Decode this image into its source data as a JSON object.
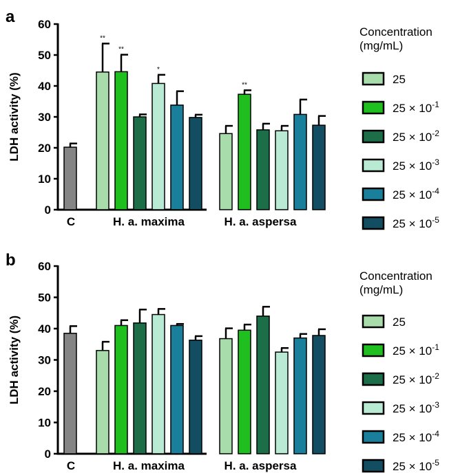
{
  "chart_data": [
    {
      "type": "bar",
      "panel_label": "a",
      "ylabel": "LDH activity (%)",
      "ylim": [
        0,
        60
      ],
      "yticks": [
        "0",
        "10",
        "20",
        "30",
        "40",
        "50",
        "60"
      ],
      "group_labels": [
        "C",
        "H. a. maxima",
        "H. a. aspersa"
      ],
      "legend_title": [
        "Concentration",
        "(mg/mL)"
      ],
      "legend": [
        {
          "base": "25",
          "exp": ""
        },
        {
          "base": "25 × 10",
          "exp": "-1"
        },
        {
          "base": "25 × 10",
          "exp": "-2"
        },
        {
          "base": "25 × 10",
          "exp": "-3"
        },
        {
          "base": "25 × 10",
          "exp": "-4"
        },
        {
          "base": "25 × 10",
          "exp": "-5"
        }
      ],
      "series": [
        {
          "name": "C",
          "values": [
            20.2
          ],
          "errors": [
            1.2
          ],
          "color": "#858585",
          "stars": [
            ""
          ]
        },
        {
          "name": "H. a. maxima",
          "values": [
            44.5,
            44.6,
            30.0,
            40.8,
            33.8,
            29.8
          ],
          "errors": [
            9.2,
            5.5,
            0.8,
            2.8,
            4.5,
            0.9
          ],
          "stars": [
            "**",
            "**",
            "",
            "*",
            "",
            ""
          ]
        },
        {
          "name": "H. a. aspersa",
          "values": [
            24.6,
            37.3,
            25.8,
            25.5,
            30.8,
            27.3
          ],
          "errors": [
            2.5,
            1.3,
            2.0,
            1.6,
            4.8,
            3.0
          ],
          "stars": [
            "",
            "**",
            "",
            "",
            "",
            ""
          ]
        }
      ]
    },
    {
      "type": "bar",
      "panel_label": "b",
      "ylabel": "LDH activity (%)",
      "ylim": [
        0,
        60
      ],
      "yticks": [
        "0",
        "10",
        "20",
        "30",
        "40",
        "50",
        "60"
      ],
      "group_labels": [
        "C",
        "H. a. maxima",
        "H. a. aspersa"
      ],
      "legend_title": [
        "Concentration",
        "(mg/mL)"
      ],
      "legend": [
        {
          "base": "25",
          "exp": ""
        },
        {
          "base": "25 × 10",
          "exp": "-1"
        },
        {
          "base": "25 × 10",
          "exp": "-2"
        },
        {
          "base": "25 × 10",
          "exp": "-3"
        },
        {
          "base": "25 × 10",
          "exp": "-4"
        },
        {
          "base": "25 × 10",
          "exp": "-5"
        }
      ],
      "series": [
        {
          "name": "C",
          "values": [
            38.5
          ],
          "errors": [
            2.3
          ],
          "color": "#858585",
          "stars": [
            ""
          ]
        },
        {
          "name": "H. a. maxima",
          "values": [
            33.0,
            41.0,
            41.8,
            44.5,
            41.0,
            36.3
          ],
          "errors": [
            2.8,
            1.7,
            4.3,
            1.8,
            0.5,
            1.3
          ],
          "stars": [
            "",
            "",
            "",
            "",
            "",
            ""
          ]
        },
        {
          "name": "H. a. aspersa",
          "values": [
            36.8,
            39.5,
            44.0,
            32.5,
            37.0,
            37.8
          ],
          "errors": [
            3.3,
            1.8,
            3.0,
            1.3,
            1.3,
            2.0
          ],
          "stars": [
            "",
            "",
            "",
            "",
            "",
            ""
          ]
        }
      ]
    }
  ],
  "colors": {
    "control": "#858585",
    "concentrations": [
      "#a8dcaa",
      "#1ebf1e",
      "#1c6e48",
      "#b8ead4",
      "#1a7f9a",
      "#134d61"
    ]
  }
}
